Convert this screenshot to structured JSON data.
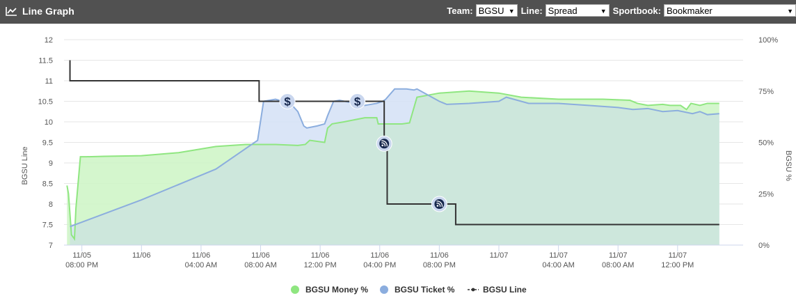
{
  "header": {
    "title": "Line Graph",
    "icon": "line-chart-icon",
    "team_label": "Team:",
    "team_value": "BGSU",
    "line_label": "Line:",
    "line_value": "Spread",
    "sportsbook_label": "Sportbook:",
    "sportsbook_value": "Bookmaker"
  },
  "colors": {
    "header_bg": "#515151",
    "money": "#8fe680",
    "money_fill": "#ccf5c4",
    "ticket": "#8badde",
    "ticket_fill": "#d3e0f6",
    "overlap_fill": "#cde7dc",
    "line": "#333333",
    "marker": "#16274d"
  },
  "chart_data": {
    "type": "line",
    "xlabel": "",
    "ylabel_left": "BGSU Line",
    "ylabel_right": "BGSU %",
    "ylim_left": [
      7,
      12
    ],
    "ylim_right": [
      0,
      100
    ],
    "yticks_left": [
      "7",
      "7.5",
      "8",
      "8.5",
      "9",
      "9.5",
      "10",
      "10.5",
      "11",
      "11.5",
      "12"
    ],
    "yticks_right": [
      "0%",
      "25%",
      "50%",
      "75%",
      "100%"
    ],
    "xlim_hours": [
      14.8,
      60.4
    ],
    "xticks": [
      {
        "h": 16,
        "date": "11/05",
        "time": "08:00 PM"
      },
      {
        "h": 20,
        "date": "11/06",
        "time": ""
      },
      {
        "h": 24,
        "date": "11/06",
        "time": "04:00 AM"
      },
      {
        "h": 28,
        "date": "11/06",
        "time": "08:00 AM"
      },
      {
        "h": 32,
        "date": "11/06",
        "time": "12:00 PM"
      },
      {
        "h": 36,
        "date": "11/06",
        "time": "04:00 PM"
      },
      {
        "h": 40,
        "date": "11/06",
        "time": "08:00 PM"
      },
      {
        "h": 44,
        "date": "11/07",
        "time": ""
      },
      {
        "h": 48,
        "date": "11/07",
        "time": "04:00 AM"
      },
      {
        "h": 52,
        "date": "11/07",
        "time": "08:00 AM"
      },
      {
        "h": 56,
        "date": "11/07",
        "time": "12:00 PM"
      }
    ],
    "legend": "bottom",
    "grid": true,
    "series": [
      {
        "name": "BGSU Money %",
        "axis": "right",
        "x": [
          15.0,
          15.1,
          15.3,
          15.5,
          15.6,
          15.9,
          16.3,
          17.5,
          20.0,
          22.5,
          25.0,
          27.0,
          29.0,
          30.5,
          31.0,
          31.3,
          32.3,
          32.5,
          32.8,
          33.6,
          35.0,
          35.8,
          35.9,
          37.5,
          38.0,
          38.5,
          40.0,
          42.0,
          44.0,
          45.5,
          48.0,
          51.0,
          52.8,
          53.3,
          54.0,
          55.0,
          55.5,
          56.2,
          56.6,
          56.9,
          57.5,
          58.0,
          58.8
        ],
        "y": [
          29,
          25,
          5,
          3,
          18,
          43,
          43,
          43.2,
          43.5,
          45,
          48,
          49,
          49,
          48.5,
          49,
          51,
          50,
          57,
          59,
          60,
          62,
          62,
          59,
          59,
          59.5,
          72,
          74,
          75,
          74,
          72,
          71,
          71,
          70.5,
          69,
          68,
          68.5,
          68,
          68,
          66,
          69,
          68,
          69,
          69
        ]
      },
      {
        "name": "BGSU Ticket %",
        "axis": "right",
        "x": [
          15.2,
          20.0,
          25.0,
          27.8,
          28.2,
          29.0,
          30.0,
          30.5,
          30.9,
          31.1,
          31.8,
          32.3,
          32.5,
          32.9,
          33.3,
          35.0,
          35.8,
          36.2,
          36.4,
          37.0,
          37.8,
          38.3,
          38.5,
          40.0,
          40.5,
          42.0,
          44.0,
          44.5,
          46.0,
          48.0,
          50.0,
          52.0,
          53.0,
          54.0,
          55.0,
          56.0,
          57.0,
          57.5,
          58.0,
          58.8
        ],
        "y": [
          9,
          22,
          37,
          51,
          70,
          71,
          69,
          65,
          58,
          57,
          58,
          59,
          63,
          70,
          70.5,
          68,
          69,
          70,
          71,
          76,
          76,
          75.5,
          76,
          70,
          68.5,
          69,
          70,
          72,
          69,
          69,
          68,
          67,
          66,
          66.5,
          65,
          65.5,
          64,
          65,
          63.5,
          64
        ]
      },
      {
        "name": "BGSU Line",
        "axis": "left",
        "step": true,
        "x": [
          15.2,
          15.2,
          27.9,
          27.9,
          36.3,
          36.3,
          36.5,
          36.5,
          41.1,
          41.1,
          58.8
        ],
        "y": [
          11.5,
          11.0,
          11.0,
          10.5,
          10.5,
          9.5,
          9.5,
          8.0,
          8.0,
          7.5,
          7.5
        ]
      }
    ],
    "markers": [
      {
        "type": "dollar",
        "h": 29.8,
        "y": 10.5
      },
      {
        "type": "dollar",
        "h": 34.5,
        "y": 10.5
      },
      {
        "type": "feed",
        "h": 36.3,
        "y": 9.47
      },
      {
        "type": "feed",
        "h": 40.0,
        "y": 8.0
      }
    ]
  }
}
